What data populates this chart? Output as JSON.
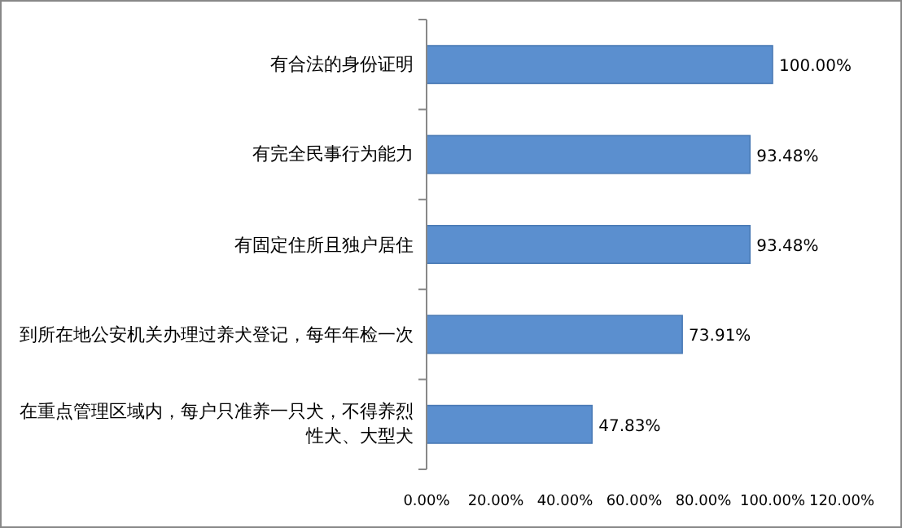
{
  "chart_data": {
    "type": "bar",
    "orientation": "horizontal",
    "categories": [
      "有合法的身份证明",
      "有完全民事行为能力",
      "有固定住所且独户居住",
      "到所在地公安机关办理过养犬登记，每年年检一次",
      "在重点管理区域内，每户只准养一只犬，不得养烈性犬、大型犬"
    ],
    "values": [
      100,
      93.48,
      93.48,
      73.91,
      47.83
    ],
    "value_labels": [
      "100.00%",
      "93.48%",
      "93.48%",
      "73.91%",
      "47.83%"
    ],
    "color": "#5b8fcf",
    "xlim": [
      0,
      120
    ],
    "xticks": [
      {
        "value": 0,
        "label": "0.00%"
      },
      {
        "value": 20,
        "label": "20.00%"
      },
      {
        "value": 40,
        "label": "40.00%"
      },
      {
        "value": 60,
        "label": "60.00%"
      },
      {
        "value": 80,
        "label": "80.00%"
      },
      {
        "value": 100,
        "label": "100.00%"
      },
      {
        "value": 120,
        "label": "120.00%"
      }
    ]
  }
}
